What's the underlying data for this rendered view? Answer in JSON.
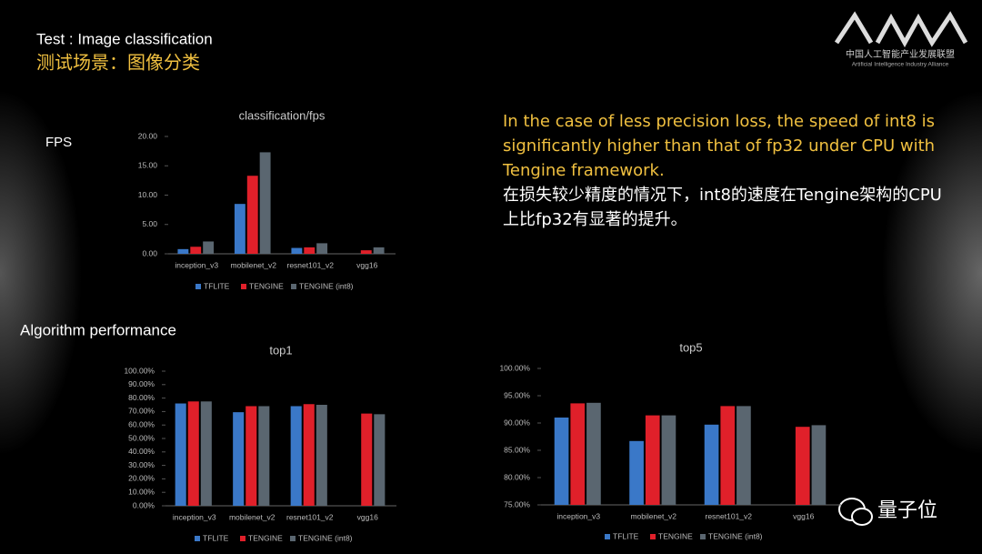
{
  "header": {
    "title": "Test : Image classification",
    "subtitle": "测试场景：图像分类"
  },
  "labels": {
    "fps": "FPS",
    "algorithm": "Algorithm performance"
  },
  "text_en": "In the case of less precision loss, the speed of int8 is significantly higher than that of fp32 under CPU with Tengine framework.",
  "text_zh": "在损失较少精度的情况下，int8的速度在Tengine架构的CPU上比fp32有显著的提升。",
  "logo": {
    "name_zh": "中国人工智能产业发展联盟",
    "name_en": "Artificial Intelligence Industry Alliance"
  },
  "watermark": "量子位",
  "chart_data": [
    {
      "type": "bar",
      "title": "classification/fps",
      "categories": [
        "inception_v3",
        "mobilenet_v2",
        "resnet101_v2",
        "vgg16"
      ],
      "series": [
        {
          "name": "TFLITE",
          "color": "#3a78c8",
          "values": [
            0.8,
            8.5,
            1.0,
            null
          ]
        },
        {
          "name": "TENGINE",
          "color": "#e0202a",
          "values": [
            1.2,
            13.3,
            1.1,
            0.6
          ]
        },
        {
          "name": "TENGINE (int8)",
          "color": "#5a6670",
          "values": [
            2.1,
            17.3,
            1.8,
            1.1
          ]
        }
      ],
      "ylim": [
        0,
        20
      ],
      "yticks": [
        {
          "value": 0,
          "label": "0.00"
        },
        {
          "value": 5,
          "label": "5.00"
        },
        {
          "value": 10,
          "label": "10.00"
        },
        {
          "value": 15,
          "label": "15.00"
        },
        {
          "value": 20,
          "label": "20.00"
        }
      ]
    },
    {
      "type": "bar",
      "title": "top1",
      "categories": [
        "inception_v3",
        "mobilenet_v2",
        "resnet101_v2",
        "vgg16"
      ],
      "series": [
        {
          "name": "TFLITE",
          "color": "#3a78c8",
          "values": [
            76,
            69.5,
            74,
            null
          ]
        },
        {
          "name": "TENGINE",
          "color": "#e0202a",
          "values": [
            77.5,
            74,
            75.5,
            68.5
          ]
        },
        {
          "name": "TENGINE (int8)",
          "color": "#5a6670",
          "values": [
            77.5,
            74,
            75,
            68
          ]
        }
      ],
      "ylim": [
        0,
        100
      ],
      "yticks": [
        {
          "value": 0,
          "label": "0.00%"
        },
        {
          "value": 10,
          "label": "10.00%"
        },
        {
          "value": 20,
          "label": "20.00%"
        },
        {
          "value": 30,
          "label": "30.00%"
        },
        {
          "value": 40,
          "label": "40.00%"
        },
        {
          "value": 50,
          "label": "50.00%"
        },
        {
          "value": 60,
          "label": "60.00%"
        },
        {
          "value": 70,
          "label": "70.00%"
        },
        {
          "value": 80,
          "label": "80.00%"
        },
        {
          "value": 90,
          "label": "90.00%"
        },
        {
          "value": 100,
          "label": "100.00%"
        }
      ]
    },
    {
      "type": "bar",
      "title": "top5",
      "categories": [
        "inception_v3",
        "mobilenet_v2",
        "resnet101_v2",
        "vgg16"
      ],
      "series": [
        {
          "name": "TFLITE",
          "color": "#3a78c8",
          "values": [
            91,
            86.7,
            89.7,
            null
          ]
        },
        {
          "name": "TENGINE",
          "color": "#e0202a",
          "values": [
            93.6,
            91.4,
            93.1,
            89.3
          ]
        },
        {
          "name": "TENGINE (int8)",
          "color": "#5a6670",
          "values": [
            93.7,
            91.4,
            93.1,
            89.6
          ]
        }
      ],
      "ylim": [
        75,
        100
      ],
      "yticks": [
        {
          "value": 75,
          "label": "75.00%"
        },
        {
          "value": 80,
          "label": "80.00%"
        },
        {
          "value": 85,
          "label": "85.00%"
        },
        {
          "value": 90,
          "label": "90.00%"
        },
        {
          "value": 95,
          "label": "95.00%"
        },
        {
          "value": 100,
          "label": "100.00%"
        }
      ]
    }
  ]
}
